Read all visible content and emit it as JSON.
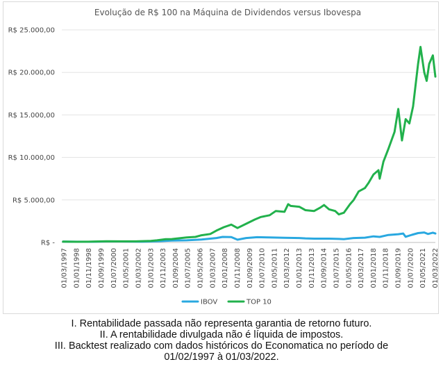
{
  "chart_data": {
    "type": "line",
    "title": "Evolução de R$ 100 na Máquina de Dividendos versus Ibovespa",
    "xlabel": "",
    "ylabel": "",
    "ylim": [
      0,
      25000
    ],
    "yticks": [
      {
        "value": 0,
        "label": "R$ -"
      },
      {
        "value": 5000,
        "label": "R$ 5.000,00"
      },
      {
        "value": 10000,
        "label": "R$ 10.000,00"
      },
      {
        "value": 15000,
        "label": "R$ 15.000,00"
      },
      {
        "value": 20000,
        "label": "R$ 20.000,00"
      },
      {
        "value": 25000,
        "label": "R$ 25.000,00"
      }
    ],
    "x_range": [
      "1997-01",
      "2022-03"
    ],
    "xticks": [
      "01/03/1997",
      "01/01/1998",
      "01/11/1998",
      "01/09/1999",
      "01/07/2000",
      "01/05/2001",
      "01/03/2002",
      "01/01/2003",
      "01/11/2003",
      "01/09/2004",
      "01/07/2005",
      "01/05/2006",
      "01/03/2007",
      "01/01/2008",
      "01/11/2008",
      "01/09/2009",
      "01/07/2010",
      "01/05/2011",
      "01/03/2012",
      "01/01/2013",
      "01/11/2013",
      "01/09/2014",
      "01/07/2015",
      "01/05/2016",
      "01/03/2017",
      "01/01/2018",
      "01/11/2018",
      "01/09/2019",
      "01/07/2020",
      "01/05/2021",
      "01/03/2022"
    ],
    "grid": true,
    "legend_position": "bottom",
    "series": [
      {
        "name": "IBOV",
        "color": "#29a8e0",
        "x": [
          "1997-02",
          "1998-01",
          "1999-01",
          "2000-01",
          "2001-01",
          "2002-06",
          "2003-06",
          "2004-06",
          "2005-06",
          "2006-06",
          "2007-06",
          "2007-11",
          "2008-06",
          "2008-11",
          "2009-06",
          "2010-03",
          "2011-01",
          "2012-01",
          "2013-01",
          "2013-06",
          "2014-01",
          "2015-01",
          "2015-09",
          "2016-01",
          "2016-09",
          "2017-06",
          "2018-01",
          "2018-06",
          "2019-01",
          "2019-09",
          "2020-01",
          "2020-03",
          "2020-08",
          "2021-01",
          "2021-06",
          "2021-09",
          "2022-01",
          "2022-03"
        ],
        "values": [
          100,
          90,
          80,
          120,
          120,
          90,
          150,
          220,
          250,
          350,
          520,
          650,
          630,
          330,
          520,
          620,
          600,
          550,
          520,
          480,
          450,
          450,
          420,
          380,
          520,
          560,
          720,
          650,
          880,
          970,
          1050,
          670,
          900,
          1100,
          1180,
          1000,
          1150,
          1050
        ]
      },
      {
        "name": "TOP 10",
        "color": "#22b14c",
        "x": [
          "1997-02",
          "1998-01",
          "1999-01",
          "2000-01",
          "2001-01",
          "2002-01",
          "2003-01",
          "2003-06",
          "2004-01",
          "2004-06",
          "2005-06",
          "2006-01",
          "2006-06",
          "2007-01",
          "2007-06",
          "2007-12",
          "2008-06",
          "2008-11",
          "2009-06",
          "2010-01",
          "2010-06",
          "2011-01",
          "2011-06",
          "2012-01",
          "2012-04",
          "2012-06",
          "2013-01",
          "2013-06",
          "2014-01",
          "2014-06",
          "2014-09",
          "2015-01",
          "2015-06",
          "2015-09",
          "2016-01",
          "2016-06",
          "2016-09",
          "2017-01",
          "2017-06",
          "2017-09",
          "2018-01",
          "2018-05",
          "2018-06",
          "2018-09",
          "2019-01",
          "2019-06",
          "2019-09",
          "2019-12",
          "2020-03",
          "2020-06",
          "2020-09",
          "2021-01",
          "2021-03",
          "2021-06",
          "2021-08",
          "2021-10",
          "2022-01",
          "2022-03"
        ],
        "values": [
          100,
          80,
          100,
          150,
          130,
          130,
          180,
          250,
          380,
          400,
          600,
          650,
          850,
          1000,
          1400,
          1800,
          2100,
          1700,
          2200,
          2700,
          3000,
          3200,
          3700,
          3600,
          4500,
          4300,
          4200,
          3800,
          3700,
          4100,
          4400,
          3900,
          3700,
          3300,
          3500,
          4500,
          5000,
          6000,
          6400,
          7000,
          8000,
          8500,
          7500,
          9500,
          11000,
          13000,
          15700,
          12000,
          14500,
          14000,
          16000,
          21000,
          23000,
          20000,
          19000,
          21000,
          22000,
          19500
        ]
      }
    ]
  },
  "footnotes": [
    "I. Rentabilidade passada não representa garantia de retorno futuro.",
    "II. A rentabilidade divulgada não é líquida de impostos.",
    "III. Backtest realizado com dados históricos do Economatica no período de",
    "01/02/1997 à 01/03/2022."
  ]
}
